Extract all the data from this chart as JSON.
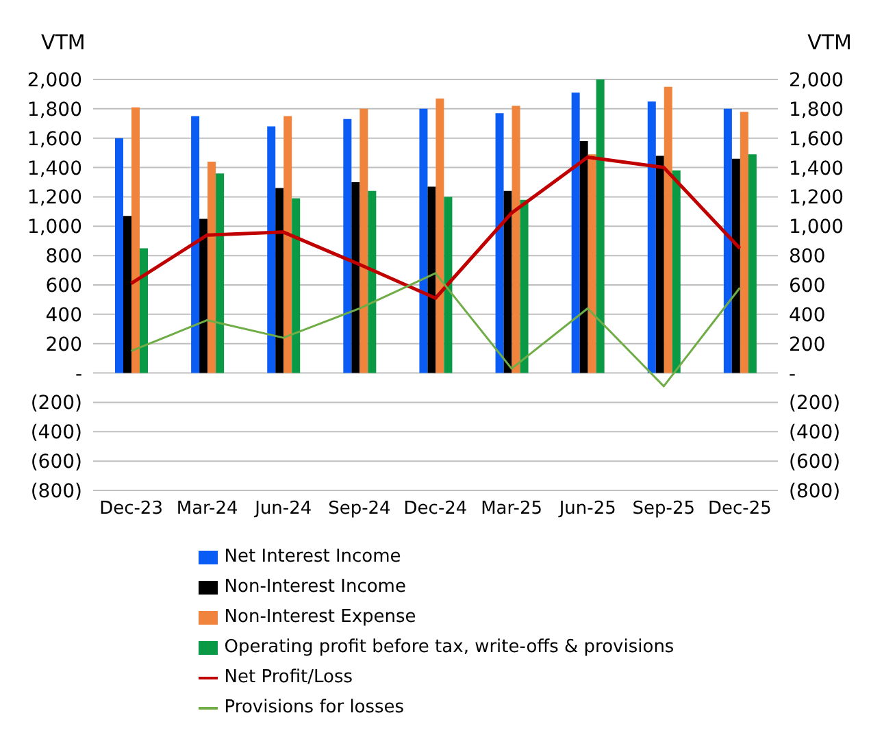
{
  "chart_data": {
    "type": "bar",
    "ylabel": "VTM",
    "y2label": "VTM",
    "categories": [
      "Dec-23",
      "Mar-24",
      "Jun-24",
      "Sep-24",
      "Dec-24",
      "Mar-25",
      "Jun-25",
      "Sep-25",
      "Dec-25"
    ],
    "series": [
      {
        "name": "Net Interest Income",
        "color": "#0a5cf5",
        "values": [
          1600,
          1750,
          1680,
          1730,
          1800,
          1770,
          1910,
          1850,
          1800
        ]
      },
      {
        "name": "Non-Interest Income",
        "color": "#000000",
        "values": [
          1070,
          1050,
          1260,
          1300,
          1270,
          1240,
          1580,
          1480,
          1460
        ]
      },
      {
        "name": "Non-Interest Expense",
        "color": "#f0843c",
        "values": [
          1810,
          1440,
          1750,
          1800,
          1870,
          1820,
          1490,
          1950,
          1780
        ]
      },
      {
        "name": "Operating profit before tax, write-offs & provisions",
        "color": "#0a9a46",
        "values": [
          850,
          1360,
          1190,
          1240,
          1200,
          1180,
          2000,
          1380,
          1490
        ]
      },
      {
        "name": "Net Profit/Loss",
        "type": "line",
        "color": "#c00000",
        "values": [
          610,
          940,
          960,
          740,
          510,
          1090,
          1470,
          1400,
          850
        ]
      },
      {
        "name": "Provisions for losses",
        "type": "line",
        "color": "#70ad47",
        "values": [
          150,
          360,
          240,
          440,
          680,
          30,
          440,
          -90,
          580
        ]
      }
    ],
    "ylim": [
      -800,
      2000
    ],
    "yticks": [
      {
        "value": -800,
        "label": "(800)"
      },
      {
        "value": -600,
        "label": "(600)"
      },
      {
        "value": -400,
        "label": "(400)"
      },
      {
        "value": -200,
        "label": "(200)"
      },
      {
        "value": 0,
        "label": "-"
      },
      200,
      400,
      600,
      800,
      {
        "value": 1000,
        "label": "1,000"
      },
      {
        "value": 1200,
        "label": "1,200"
      },
      {
        "value": 1400,
        "label": "1,400"
      },
      {
        "value": 1600,
        "label": "1,600"
      },
      {
        "value": 1800,
        "label": "1,800"
      },
      {
        "value": 2000,
        "label": "2,000"
      }
    ],
    "y2lim": [
      -800,
      2000
    ],
    "y2ticks": [
      {
        "value": -800,
        "label": "(800)"
      },
      {
        "value": -600,
        "label": "(600)"
      },
      {
        "value": -400,
        "label": "(400)"
      },
      {
        "value": -200,
        "label": "(200)"
      },
      {
        "value": 0,
        "label": "-"
      },
      200,
      400,
      600,
      800,
      {
        "value": 1000,
        "label": "1,000"
      },
      {
        "value": 1200,
        "label": "1,200"
      },
      {
        "value": 1400,
        "label": "1,400"
      },
      {
        "value": 1600,
        "label": "1,600"
      },
      {
        "value": 1800,
        "label": "1,800"
      },
      {
        "value": 2000,
        "label": "2,000"
      }
    ],
    "grid": "y",
    "legend": "bottom",
    "marker": "none"
  }
}
